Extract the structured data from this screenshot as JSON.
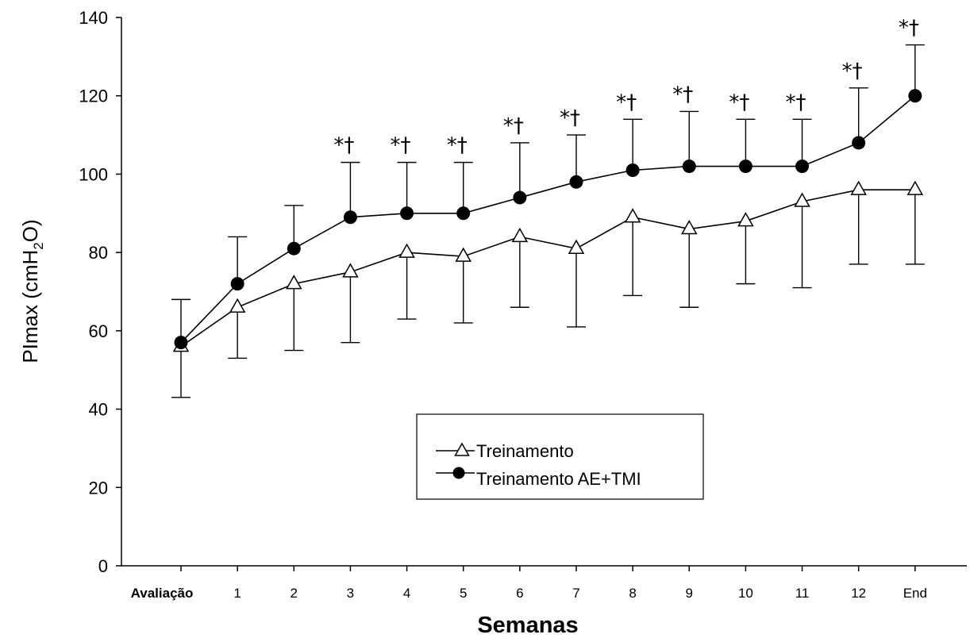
{
  "chart_data": {
    "type": "line",
    "title": "",
    "xlabel": "Semanas",
    "ylabel_main": "PImax (cmH",
    "ylabel_sub": "2",
    "ylabel_end": "O)",
    "ylim": [
      0,
      140
    ],
    "yticks": [
      "0",
      "20",
      "40",
      "60",
      "80",
      "100",
      "120",
      "140"
    ],
    "categories": [
      "Avaliação",
      "1",
      "2",
      "3",
      "4",
      "5",
      "6",
      "7",
      "8",
      "9",
      "10",
      "11",
      "12",
      "End"
    ],
    "legend_position": "bottom-center",
    "grid": false,
    "series": [
      {
        "name": "Treinamento",
        "marker": "open-triangle",
        "values": [
          56,
          66,
          72,
          75,
          80,
          79,
          84,
          81,
          89,
          86,
          88,
          93,
          96,
          96
        ],
        "error_lower": [
          43,
          53,
          55,
          57,
          63,
          62,
          66,
          61,
          69,
          66,
          72,
          71,
          77,
          77
        ]
      },
      {
        "name": "Treinamento AE+TMI",
        "marker": "filled-circle",
        "values": [
          57,
          72,
          81,
          89,
          90,
          90,
          94,
          98,
          101,
          102,
          102,
          102,
          108,
          120
        ],
        "error_upper": [
          68,
          84,
          92,
          103,
          103,
          103,
          108,
          110,
          114,
          116,
          114,
          114,
          122,
          133
        ]
      }
    ],
    "annotations": [
      "",
      "",
      "",
      "*†",
      "*†",
      "*†",
      "*†",
      "*†",
      "*†",
      "*†",
      "*†",
      "*†",
      "*†",
      "*†"
    ]
  }
}
